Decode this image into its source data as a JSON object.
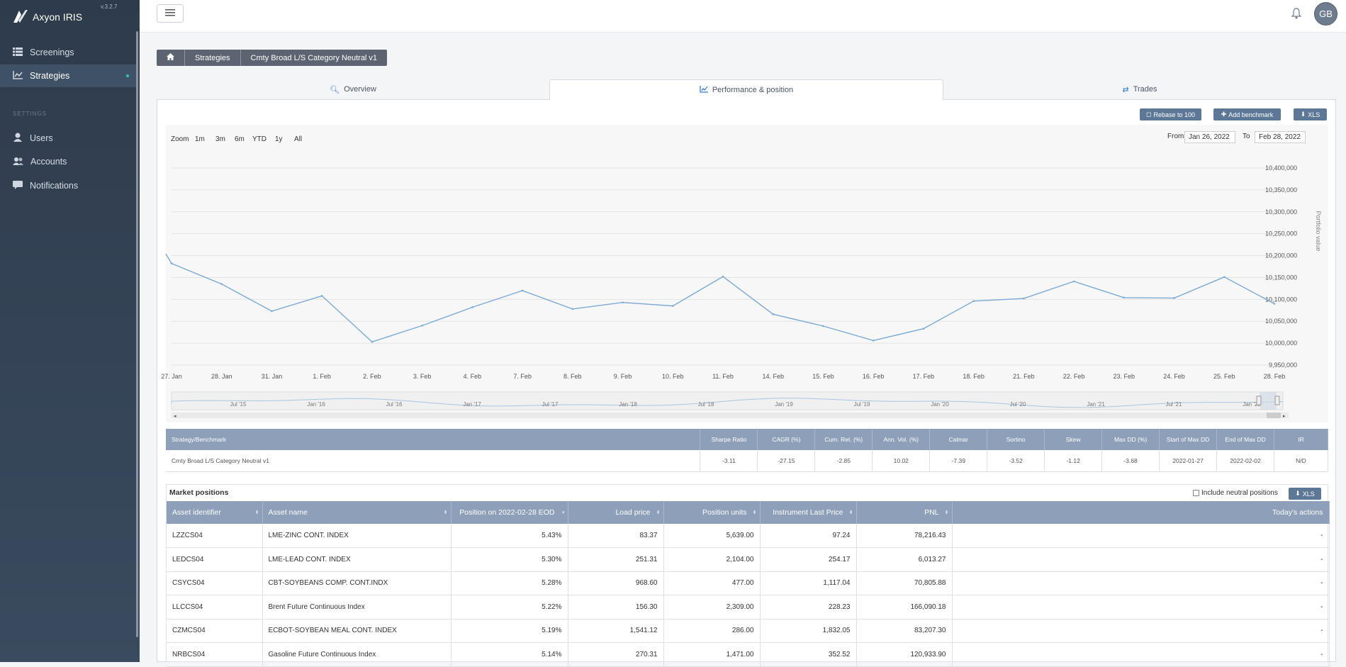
{
  "app": {
    "name": "Axyon IRIS",
    "version": "v.3.2.7"
  },
  "sidebar": {
    "items": [
      {
        "label": "Screenings",
        "icon": "table-icon"
      },
      {
        "label": "Strategies",
        "icon": "chart-icon"
      }
    ],
    "section": "SETTINGS",
    "settings_items": [
      {
        "label": "Users",
        "icon": "user-icon"
      },
      {
        "label": "Accounts",
        "icon": "users-icon"
      },
      {
        "label": "Notifications",
        "icon": "comment-icon"
      }
    ]
  },
  "topbar": {
    "avatar": "GB"
  },
  "breadcrumb": [
    "Strategies",
    "Cmty Broad L/S Category Neutral v1"
  ],
  "tabs": [
    {
      "label": "Overview"
    },
    {
      "label": "Performance & position"
    },
    {
      "label": "Trades"
    }
  ],
  "toolbar": {
    "rebase": "Rebase to 100",
    "benchmark": "Add benchmark",
    "xls": "XLS"
  },
  "zoom": {
    "label": "Zoom",
    "options": [
      "1m",
      "3m",
      "6m",
      "YTD",
      "1y",
      "All"
    ]
  },
  "range": {
    "from_label": "From",
    "from": "Jan 26, 2022",
    "to_label": "To",
    "to": "Feb 28, 2022"
  },
  "chart_data": {
    "type": "line",
    "ylabel": "Portfolio value",
    "ylim": [
      9950000,
      10400000
    ],
    "yticks": [
      "10,400,000",
      "10,350,000",
      "10,300,000",
      "10,250,000",
      "10,200,000",
      "10,150,000",
      "10,100,000",
      "10,050,000",
      "10,000,000",
      "9,950,000"
    ],
    "x": [
      "27. Jan",
      "28. Jan",
      "31. Jan",
      "1. Feb",
      "2. Feb",
      "3. Feb",
      "4. Feb",
      "7. Feb",
      "8. Feb",
      "9. Feb",
      "10. Feb",
      "11. Feb",
      "14. Feb",
      "15. Feb",
      "16. Feb",
      "17. Feb",
      "18. Feb",
      "21. Feb",
      "22. Feb",
      "23. Feb",
      "24. Feb",
      "25. Feb",
      "28. Feb"
    ],
    "values": [
      10182000,
      10135000,
      10073000,
      10108000,
      10003000,
      10040000,
      10082000,
      10120000,
      10078000,
      10093000,
      10085000,
      10152000,
      10066000,
      10039000,
      10006000,
      10033000,
      10096000,
      10102000,
      10141000,
      10104000,
      10103000,
      10151000,
      10090000
    ],
    "navigator_labels": [
      "Jul '15",
      "Jan '16",
      "Jul '16",
      "Jan '17",
      "Jul '17",
      "Jan '18",
      "Jul '18",
      "Jan '19",
      "Jul '19",
      "Jan '20",
      "Jul '20",
      "Jan '21",
      "Jul '21",
      "Jan '22"
    ]
  },
  "stats": {
    "headers": [
      "Strategy/Benchmark",
      "Sharpe Ratio",
      "CAGR (%)",
      "Cum. Ret. (%)",
      "Ann. Vol. (%)",
      "Calmar",
      "Sortino",
      "Skew",
      "Max DD (%)",
      "Start of Max DD",
      "End of Max DD",
      "IR"
    ],
    "rows": [
      [
        "Cmty Broad L/S Category Neutral v1",
        "-3.11",
        "-27.15",
        "-2.85",
        "10.02",
        "-7.39",
        "-3.52",
        "-1.12",
        "-3.68",
        "2022-01-27",
        "2022-02-02",
        "N/D"
      ]
    ]
  },
  "positions": {
    "title": "Market positions",
    "include_neutral": "Include neutral positions",
    "xls": "XLS",
    "headers": [
      "Asset identifier",
      "Asset name",
      "Position on 2022-02-28 EOD",
      "Load price",
      "Position units",
      "Instrument Last Price",
      "PNL",
      "Today's actions"
    ],
    "rows": [
      [
        "LZZCS04",
        "LME-ZINC CONT. INDEX",
        "5.43%",
        "83.37",
        "5,639.00",
        "97.24",
        "78,216.43",
        "-"
      ],
      [
        "LEDCS04",
        "LME-LEAD CONT. INDEX",
        "5.30%",
        "251.31",
        "2,104.00",
        "254.17",
        "6,013.27",
        "-"
      ],
      [
        "CSYCS04",
        "CBT-SOYBEANS COMP. CONT.INDX",
        "5.28%",
        "968.60",
        "477.00",
        "1,117.04",
        "70,805.88",
        "-"
      ],
      [
        "LLCCS04",
        "Brent Future Continuous Index",
        "5.22%",
        "156.30",
        "2,309.00",
        "228.23",
        "166,090.18",
        "-"
      ],
      [
        "CZMCS04",
        "ECBOT-SOYBEAN MEAL CONT. INDEX",
        "5.19%",
        "1,541.12",
        "286.00",
        "1,832.05",
        "83,207.30",
        "-"
      ],
      [
        "NRBCS04",
        "Gasoline Future Continuous Index",
        "5.14%",
        "270.31",
        "1,471.00",
        "352.52",
        "120,933.90",
        "-"
      ]
    ]
  }
}
